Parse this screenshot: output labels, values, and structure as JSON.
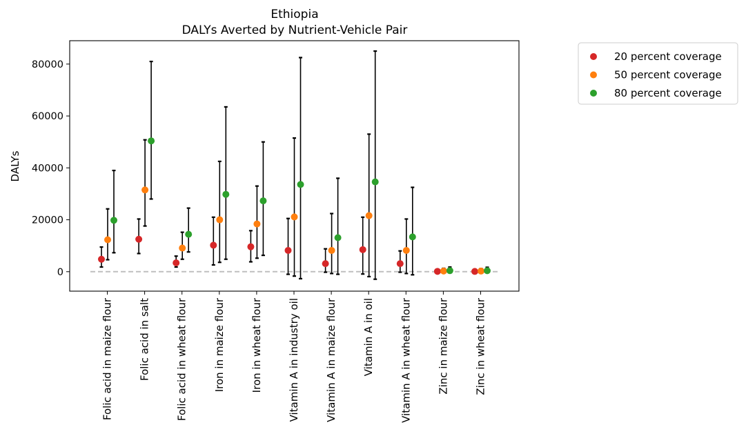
{
  "chart_data": {
    "type": "scatter",
    "title": "Ethiopia",
    "subtitle": "DALYs Averted by Nutrient-Vehicle Pair",
    "xlabel": "",
    "ylabel": "DALYs",
    "ylim": [
      -7500,
      89000
    ],
    "yticks": [
      0,
      20000,
      40000,
      60000,
      80000
    ],
    "ytick_labels": [
      "0",
      "20000",
      "40000",
      "60000",
      "80000"
    ],
    "grid": false,
    "legend_position": "outside-top-right",
    "reference_line": {
      "y": 0,
      "style": "dashed",
      "color": "#bfbfbf"
    },
    "categories": [
      "Folic acid in maize flour",
      "Folic acid in salt",
      "Folic acid in wheat flour",
      "Iron in maize flour",
      "Iron in wheat flour",
      "Vitamin A in industry oil",
      "Vitamin A in maize flour",
      "Vitamin A in oil",
      "Vitamin A in wheat flour",
      "Zinc in maize flour",
      "Zinc in wheat flour"
    ],
    "series": [
      {
        "name": "20 percent coverage",
        "color": "#d62728",
        "values": [
          4800,
          12500,
          3400,
          10200,
          9600,
          8200,
          3100,
          8500,
          3100,
          120,
          100
        ],
        "lower": [
          1800,
          7000,
          1800,
          2600,
          3800,
          -1000,
          -200,
          -900,
          -200,
          -100,
          -100
        ],
        "upper": [
          9500,
          20300,
          6000,
          21000,
          15800,
          20500,
          8800,
          21000,
          8000,
          500,
          450
        ]
      },
      {
        "name": "50 percent coverage",
        "color": "#ff7f0e",
        "values": [
          12300,
          31500,
          9100,
          20000,
          18400,
          21100,
          8200,
          21600,
          8200,
          250,
          230
        ],
        "lower": [
          4600,
          17600,
          4800,
          3600,
          5200,
          -1700,
          -700,
          -1900,
          -700,
          -200,
          -200
        ],
        "upper": [
          24200,
          50800,
          15200,
          42500,
          33000,
          51500,
          22400,
          53000,
          20300,
          1300,
          1200
        ]
      },
      {
        "name": "80 percent coverage",
        "color": "#2ca02c",
        "values": [
          19800,
          50400,
          14400,
          29800,
          27300,
          33600,
          13100,
          34600,
          13400,
          400,
          370
        ],
        "lower": [
          7300,
          28000,
          7600,
          4800,
          6300,
          -2700,
          -1000,
          -2900,
          -1200,
          -300,
          -300
        ],
        "upper": [
          39000,
          81000,
          24500,
          63500,
          50000,
          82500,
          36000,
          85000,
          32500,
          1800,
          1700
        ]
      }
    ]
  }
}
